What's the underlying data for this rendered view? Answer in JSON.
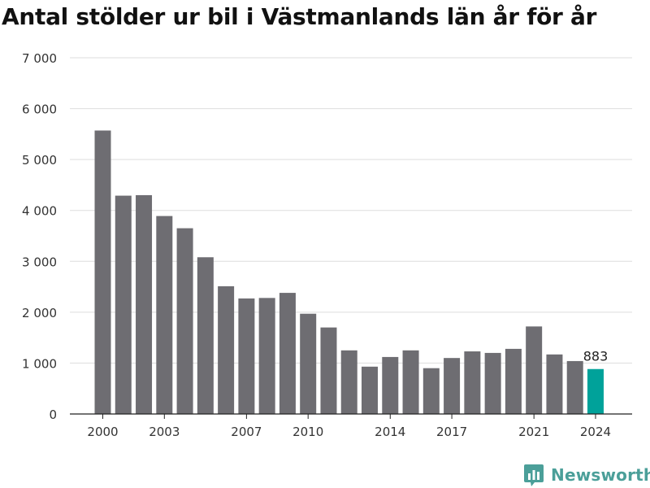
{
  "chart_data": {
    "type": "bar",
    "title": "Antal stölder ur bil i Västmanlands län år för år",
    "categories": [
      "2000",
      "2001",
      "2002",
      "2003",
      "2004",
      "2005",
      "2006",
      "2007",
      "2008",
      "2009",
      "2010",
      "2011",
      "2012",
      "2013",
      "2014",
      "2015",
      "2016",
      "2017",
      "2018",
      "2019",
      "2020",
      "2021",
      "2022",
      "2023",
      "2024"
    ],
    "values": [
      5570,
      4290,
      4300,
      3890,
      3650,
      3080,
      2510,
      2270,
      2280,
      2380,
      1970,
      1700,
      1250,
      930,
      1120,
      1250,
      900,
      1100,
      1230,
      1200,
      1280,
      1720,
      1170,
      1040,
      883
    ],
    "xtick_labels": [
      "2000",
      "2003",
      "2007",
      "2010",
      "2014",
      "2017",
      "2021",
      "2024"
    ],
    "ytick_labels": [
      "0",
      "1 000",
      "2 000",
      "3 000",
      "4 000",
      "5 000",
      "6 000",
      "7 000"
    ],
    "ytick_values": [
      0,
      1000,
      2000,
      3000,
      4000,
      5000,
      6000,
      7000
    ],
    "ylim": [
      0,
      7000
    ],
    "xlabel": "",
    "ylabel": "",
    "grid": true,
    "highlight": {
      "category": "2024",
      "label": "883"
    },
    "colors": {
      "bar": "#6e6d72",
      "highlight": "#00a29a",
      "grid": "#dddddd",
      "axis": "#222222"
    }
  },
  "logo": {
    "text": "Newsworthy",
    "icon": "newsworthy-chart-icon",
    "color": "#4b9f99"
  }
}
